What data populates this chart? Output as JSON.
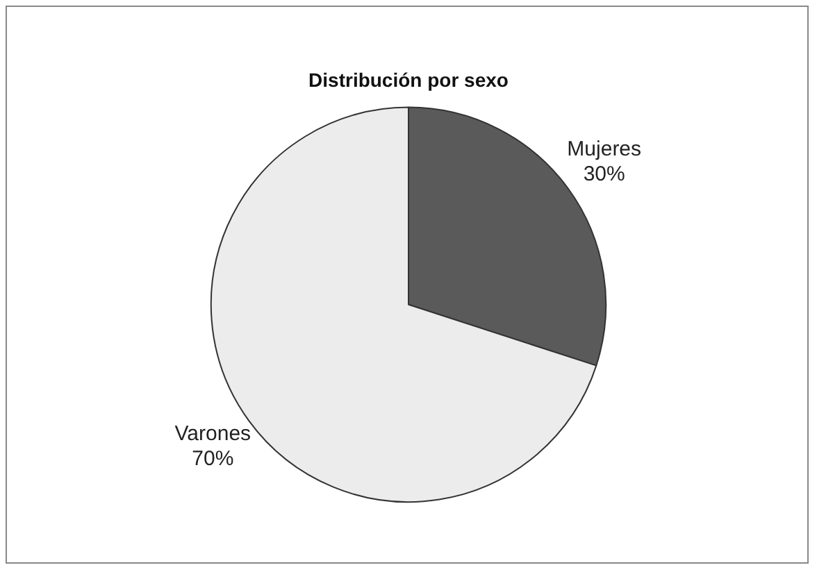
{
  "chart_data": {
    "type": "pie",
    "title": "Distribución por sexo",
    "categories": [
      "Mujeres",
      "Varones"
    ],
    "values": [
      30,
      70
    ],
    "value_labels": [
      "30%",
      "70%"
    ],
    "colors": [
      "#5a5a5a",
      "#ececec"
    ],
    "legend": false
  }
}
